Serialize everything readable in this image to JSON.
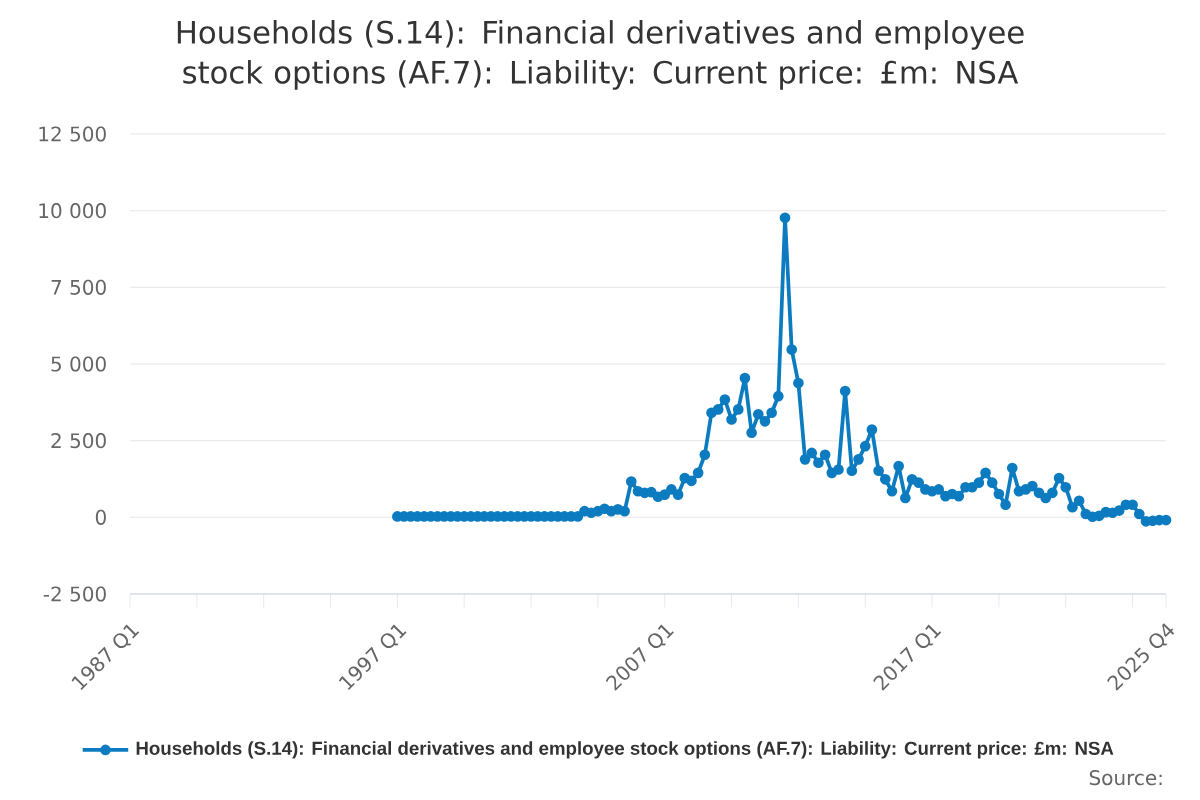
{
  "chart_data": {
    "type": "line",
    "title": "Households (S.14): Financial derivatives and employee stock options (AF.7): Liability: Current price: £m: NSA",
    "categories": [
      "1987 Q1",
      null,
      null,
      null,
      null,
      null,
      null,
      null,
      null,
      null,
      null,
      null,
      null,
      null,
      null,
      null,
      null,
      null,
      null,
      null,
      null,
      null,
      null,
      null,
      null,
      null,
      null,
      null,
      null,
      null,
      null,
      null,
      null,
      null,
      null,
      null,
      null,
      null,
      null,
      null,
      "1997 Q1",
      null,
      null,
      null,
      null,
      null,
      null,
      null,
      null,
      null,
      null,
      null,
      null,
      null,
      null,
      null,
      null,
      null,
      null,
      null,
      null,
      null,
      null,
      null,
      null,
      null,
      null,
      null,
      null,
      null,
      null,
      null,
      null,
      null,
      null,
      null,
      null,
      null,
      null,
      null,
      "2007 Q1",
      null,
      null,
      null,
      null,
      null,
      null,
      null,
      null,
      null,
      null,
      null,
      null,
      null,
      null,
      null,
      null,
      null,
      null,
      null,
      null,
      null,
      null,
      null,
      null,
      null,
      null,
      null,
      null,
      null,
      null,
      null,
      null,
      null,
      null,
      null,
      null,
      null,
      null,
      null,
      "2017 Q1",
      null,
      null,
      null,
      null,
      null,
      null,
      null,
      null,
      null,
      null,
      null,
      null,
      null,
      null,
      null,
      null,
      null,
      null,
      null,
      null,
      null,
      null,
      null,
      null,
      null,
      null,
      null,
      null,
      null,
      null,
      null,
      null,
      null,
      null,
      "2025 Q4"
    ],
    "series": [
      {
        "name": "Households (S.14): Financial derivatives and employee stock options (AF.7): Liability: Current price: £m: NSA",
        "color": "#0c7bc0",
        "values": [
          null,
          null,
          null,
          null,
          null,
          null,
          null,
          null,
          null,
          null,
          null,
          null,
          null,
          null,
          null,
          null,
          null,
          null,
          null,
          null,
          null,
          null,
          null,
          null,
          null,
          null,
          null,
          null,
          null,
          null,
          null,
          null,
          null,
          null,
          null,
          null,
          null,
          null,
          null,
          null,
          30,
          30,
          30,
          30,
          30,
          30,
          30,
          30,
          30,
          30,
          30,
          30,
          30,
          30,
          30,
          30,
          30,
          30,
          30,
          30,
          30,
          30,
          30,
          30,
          30,
          30,
          30,
          30,
          200,
          150,
          200,
          280,
          200,
          260,
          200,
          1170,
          850,
          800,
          820,
          670,
          740,
          910,
          740,
          1280,
          1190,
          1450,
          2040,
          3410,
          3520,
          3840,
          3190,
          3520,
          4540,
          2760,
          3360,
          3130,
          3410,
          3950,
          9770,
          5470,
          4380,
          1890,
          2100,
          1780,
          2040,
          1450,
          1560,
          4120,
          1520,
          1890,
          2320,
          2860,
          1520,
          1240,
          850,
          1670,
          630,
          1240,
          1130,
          910,
          850,
          910,
          690,
          760,
          690,
          980,
          980,
          1130,
          1450,
          1130,
          760,
          410,
          1610,
          850,
          910,
          1020,
          800,
          630,
          800,
          1280,
          980,
          330,
          540,
          110,
          20,
          50,
          170,
          150,
          220,
          410,
          410,
          110,
          -130,
          -110,
          -90,
          -90
        ]
      }
    ],
    "ylim": [
      -2500,
      12500
    ],
    "yticks": [
      {
        "value": -2500,
        "label": "-2 500"
      },
      {
        "value": 0,
        "label": "0"
      },
      {
        "value": 2500,
        "label": "2 500"
      },
      {
        "value": 5000,
        "label": "5 000"
      },
      {
        "value": 7500,
        "label": "7 500"
      },
      {
        "value": 10000,
        "label": "10 000"
      },
      {
        "value": 12500,
        "label": "12 500"
      }
    ],
    "grid": "y",
    "legend": "bottom",
    "marker": "circle",
    "annotations": [
      "Source:"
    ]
  }
}
